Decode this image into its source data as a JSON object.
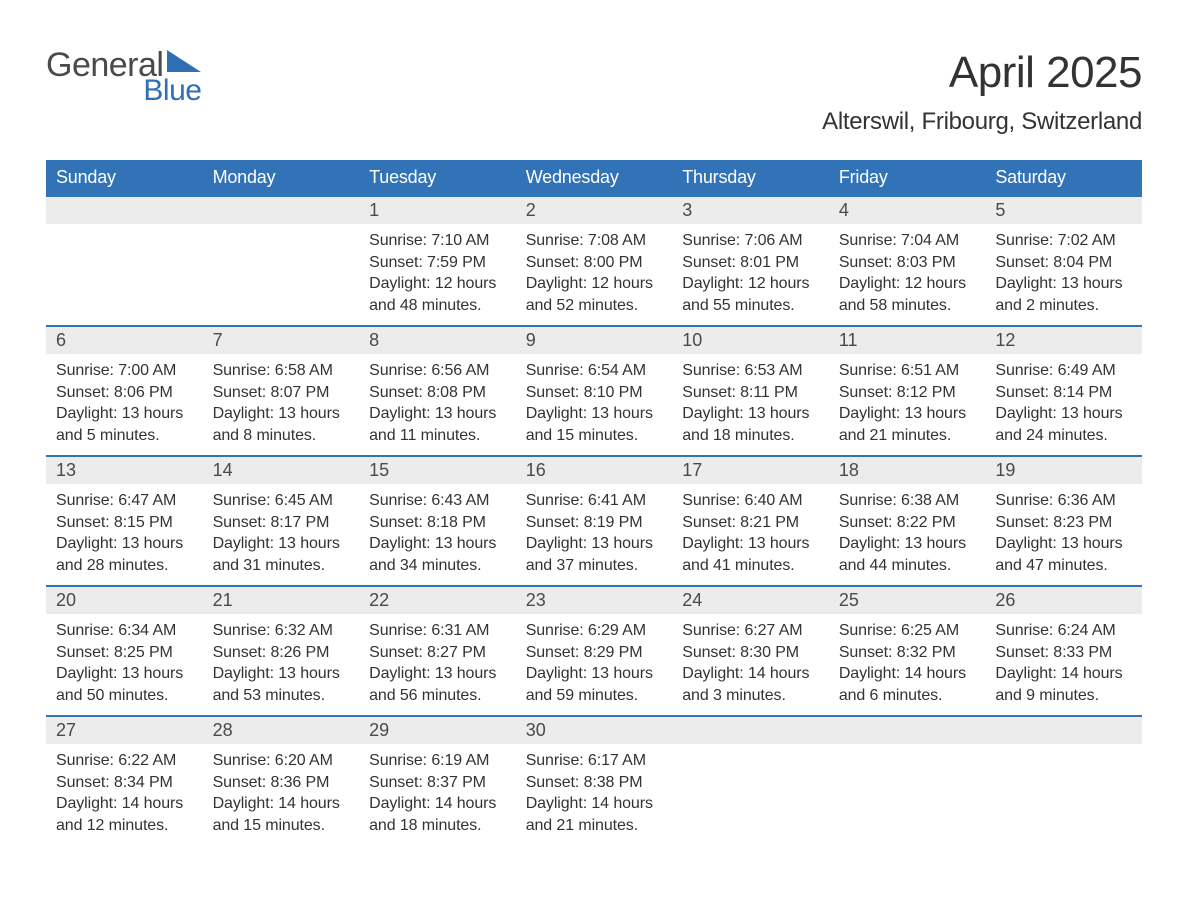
{
  "logo": {
    "text_general": "General",
    "text_blue": "Blue",
    "triangle_color": "#2f6fb3",
    "text_color_general": "#4a4a4a",
    "text_color_blue": "#2f6fb3"
  },
  "title": {
    "month": "April 2025",
    "location": "Alterswil, Fribourg, Switzerland",
    "month_fontsize": 44,
    "location_fontsize": 24,
    "title_color": "#333333"
  },
  "calendar": {
    "type": "table",
    "header_bg": "#3173b6",
    "header_text_color": "#ffffff",
    "row_divider_color": "#3173b6",
    "daynum_bg": "#ececec",
    "body_text_color": "#333333",
    "body_fontsize": 16,
    "daynum_fontsize": 18,
    "daynum_color": "#4a4a4a",
    "columns": [
      "Sunday",
      "Monday",
      "Tuesday",
      "Wednesday",
      "Thursday",
      "Friday",
      "Saturday"
    ],
    "weeks": [
      [
        null,
        null,
        {
          "n": "1",
          "sunrise": "Sunrise: 7:10 AM",
          "sunset": "Sunset: 7:59 PM",
          "daylight": "Daylight: 12 hours and 48 minutes."
        },
        {
          "n": "2",
          "sunrise": "Sunrise: 7:08 AM",
          "sunset": "Sunset: 8:00 PM",
          "daylight": "Daylight: 12 hours and 52 minutes."
        },
        {
          "n": "3",
          "sunrise": "Sunrise: 7:06 AM",
          "sunset": "Sunset: 8:01 PM",
          "daylight": "Daylight: 12 hours and 55 minutes."
        },
        {
          "n": "4",
          "sunrise": "Sunrise: 7:04 AM",
          "sunset": "Sunset: 8:03 PM",
          "daylight": "Daylight: 12 hours and 58 minutes."
        },
        {
          "n": "5",
          "sunrise": "Sunrise: 7:02 AM",
          "sunset": "Sunset: 8:04 PM",
          "daylight": "Daylight: 13 hours and 2 minutes."
        }
      ],
      [
        {
          "n": "6",
          "sunrise": "Sunrise: 7:00 AM",
          "sunset": "Sunset: 8:06 PM",
          "daylight": "Daylight: 13 hours and 5 minutes."
        },
        {
          "n": "7",
          "sunrise": "Sunrise: 6:58 AM",
          "sunset": "Sunset: 8:07 PM",
          "daylight": "Daylight: 13 hours and 8 minutes."
        },
        {
          "n": "8",
          "sunrise": "Sunrise: 6:56 AM",
          "sunset": "Sunset: 8:08 PM",
          "daylight": "Daylight: 13 hours and 11 minutes."
        },
        {
          "n": "9",
          "sunrise": "Sunrise: 6:54 AM",
          "sunset": "Sunset: 8:10 PM",
          "daylight": "Daylight: 13 hours and 15 minutes."
        },
        {
          "n": "10",
          "sunrise": "Sunrise: 6:53 AM",
          "sunset": "Sunset: 8:11 PM",
          "daylight": "Daylight: 13 hours and 18 minutes."
        },
        {
          "n": "11",
          "sunrise": "Sunrise: 6:51 AM",
          "sunset": "Sunset: 8:12 PM",
          "daylight": "Daylight: 13 hours and 21 minutes."
        },
        {
          "n": "12",
          "sunrise": "Sunrise: 6:49 AM",
          "sunset": "Sunset: 8:14 PM",
          "daylight": "Daylight: 13 hours and 24 minutes."
        }
      ],
      [
        {
          "n": "13",
          "sunrise": "Sunrise: 6:47 AM",
          "sunset": "Sunset: 8:15 PM",
          "daylight": "Daylight: 13 hours and 28 minutes."
        },
        {
          "n": "14",
          "sunrise": "Sunrise: 6:45 AM",
          "sunset": "Sunset: 8:17 PM",
          "daylight": "Daylight: 13 hours and 31 minutes."
        },
        {
          "n": "15",
          "sunrise": "Sunrise: 6:43 AM",
          "sunset": "Sunset: 8:18 PM",
          "daylight": "Daylight: 13 hours and 34 minutes."
        },
        {
          "n": "16",
          "sunrise": "Sunrise: 6:41 AM",
          "sunset": "Sunset: 8:19 PM",
          "daylight": "Daylight: 13 hours and 37 minutes."
        },
        {
          "n": "17",
          "sunrise": "Sunrise: 6:40 AM",
          "sunset": "Sunset: 8:21 PM",
          "daylight": "Daylight: 13 hours and 41 minutes."
        },
        {
          "n": "18",
          "sunrise": "Sunrise: 6:38 AM",
          "sunset": "Sunset: 8:22 PM",
          "daylight": "Daylight: 13 hours and 44 minutes."
        },
        {
          "n": "19",
          "sunrise": "Sunrise: 6:36 AM",
          "sunset": "Sunset: 8:23 PM",
          "daylight": "Daylight: 13 hours and 47 minutes."
        }
      ],
      [
        {
          "n": "20",
          "sunrise": "Sunrise: 6:34 AM",
          "sunset": "Sunset: 8:25 PM",
          "daylight": "Daylight: 13 hours and 50 minutes."
        },
        {
          "n": "21",
          "sunrise": "Sunrise: 6:32 AM",
          "sunset": "Sunset: 8:26 PM",
          "daylight": "Daylight: 13 hours and 53 minutes."
        },
        {
          "n": "22",
          "sunrise": "Sunrise: 6:31 AM",
          "sunset": "Sunset: 8:27 PM",
          "daylight": "Daylight: 13 hours and 56 minutes."
        },
        {
          "n": "23",
          "sunrise": "Sunrise: 6:29 AM",
          "sunset": "Sunset: 8:29 PM",
          "daylight": "Daylight: 13 hours and 59 minutes."
        },
        {
          "n": "24",
          "sunrise": "Sunrise: 6:27 AM",
          "sunset": "Sunset: 8:30 PM",
          "daylight": "Daylight: 14 hours and 3 minutes."
        },
        {
          "n": "25",
          "sunrise": "Sunrise: 6:25 AM",
          "sunset": "Sunset: 8:32 PM",
          "daylight": "Daylight: 14 hours and 6 minutes."
        },
        {
          "n": "26",
          "sunrise": "Sunrise: 6:24 AM",
          "sunset": "Sunset: 8:33 PM",
          "daylight": "Daylight: 14 hours and 9 minutes."
        }
      ],
      [
        {
          "n": "27",
          "sunrise": "Sunrise: 6:22 AM",
          "sunset": "Sunset: 8:34 PM",
          "daylight": "Daylight: 14 hours and 12 minutes."
        },
        {
          "n": "28",
          "sunrise": "Sunrise: 6:20 AM",
          "sunset": "Sunset: 8:36 PM",
          "daylight": "Daylight: 14 hours and 15 minutes."
        },
        {
          "n": "29",
          "sunrise": "Sunrise: 6:19 AM",
          "sunset": "Sunset: 8:37 PM",
          "daylight": "Daylight: 14 hours and 18 minutes."
        },
        {
          "n": "30",
          "sunrise": "Sunrise: 6:17 AM",
          "sunset": "Sunset: 8:38 PM",
          "daylight": "Daylight: 14 hours and 21 minutes."
        },
        null,
        null,
        null
      ]
    ]
  }
}
